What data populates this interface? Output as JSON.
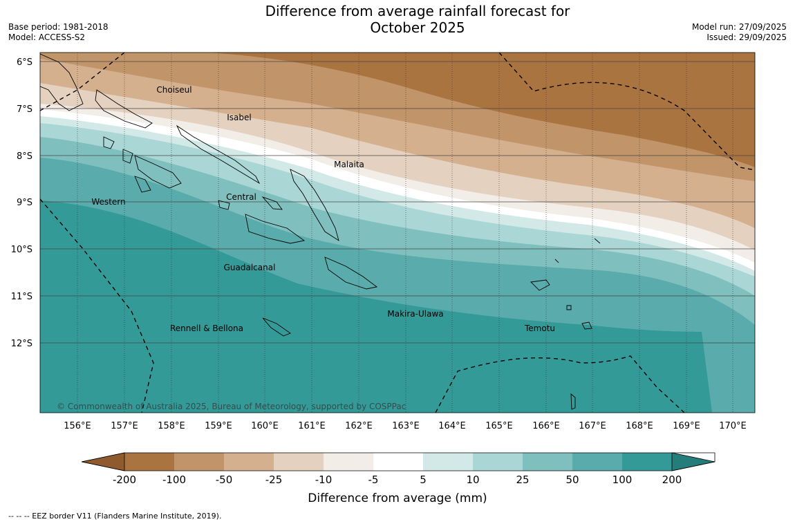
{
  "title": {
    "line1": "Difference from average rainfall forecast for",
    "line2": "October 2025"
  },
  "meta": {
    "base_period": "Base period: 1981-2018",
    "model": "Model: ACCESS-S2",
    "model_run": "Model run: 27/09/2025",
    "issued": "Issued: 29/09/2025"
  },
  "map": {
    "lat_labels": [
      "6°S",
      "7°S",
      "8°S",
      "9°S",
      "10°S",
      "11°S",
      "12°S"
    ],
    "lon_labels": [
      "156°E",
      "157°E",
      "158°E",
      "159°E",
      "160°E",
      "161°E",
      "162°E",
      "163°E",
      "164°E",
      "165°E",
      "166°E",
      "167°E",
      "168°E",
      "169°E",
      "170°E"
    ],
    "provinces": [
      "Choiseul",
      "Isabel",
      "Malaita",
      "Western",
      "Central",
      "Guadalcanal",
      "Makira-Ulawa",
      "Rennell & Bellona",
      "Temotu"
    ],
    "copyright": "© Commonwealth of Australia 2025, Bureau of Meteorology, supported by COSPPac"
  },
  "colorbar": {
    "ticks": [
      "-200",
      "-100",
      "-50",
      "-25",
      "-10",
      "-5",
      "5",
      "10",
      "25",
      "50",
      "100",
      "200"
    ],
    "colors": [
      "#8f5a2e",
      "#aa7440",
      "#c19569",
      "#d4b08f",
      "#e4d1bf",
      "#f3ede8",
      "#ffffff",
      "#d3e9e7",
      "#aad6d5",
      "#7fc0bf",
      "#5aabab",
      "#349a98",
      "#257d7b"
    ],
    "label": "Difference from average (mm)"
  },
  "footer": {
    "eez_note": "--  --  -- EEZ border V11 (Flanders Marine Institute, 2019)."
  }
}
